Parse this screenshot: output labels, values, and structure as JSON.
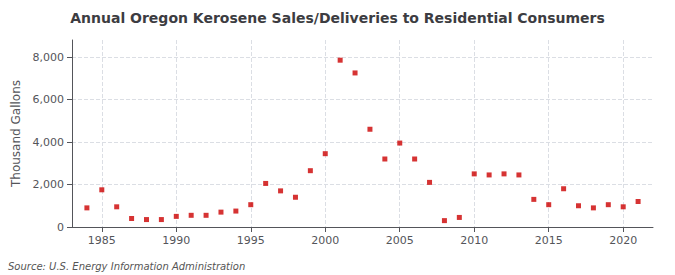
{
  "chart_data": {
    "type": "scatter",
    "title": "Annual Oregon Kerosene Sales/Deliveries to Residential Consumers",
    "ylabel": "Thousand Gallons",
    "annotations": [
      "Source: U.S. Energy Information Administration"
    ],
    "x": [
      1984,
      1985,
      1986,
      1987,
      1988,
      1989,
      1990,
      1991,
      1992,
      1993,
      1994,
      1995,
      1996,
      1997,
      1998,
      1999,
      2000,
      2001,
      2002,
      2003,
      2004,
      2005,
      2006,
      2007,
      2008,
      2009,
      2010,
      2011,
      2012,
      2013,
      2014,
      2015,
      2016,
      2017,
      2018,
      2019,
      2020,
      2021
    ],
    "values": [
      900,
      1750,
      950,
      400,
      350,
      350,
      500,
      550,
      550,
      700,
      750,
      1050,
      2050,
      1700,
      1400,
      2650,
      3450,
      7850,
      7250,
      4600,
      3200,
      3950,
      3200,
      2100,
      300,
      450,
      2500,
      2450,
      2500,
      2450,
      1300,
      1050,
      1800,
      1000,
      900,
      1050,
      950,
      1200
    ],
    "color": "#cc0000",
    "marker": "square",
    "xlim": [
      1983,
      2022
    ],
    "xticks": [
      1985,
      1990,
      1995,
      2000,
      2005,
      2010,
      2015,
      2020
    ],
    "ylim": [
      0,
      8800
    ],
    "yticks": [
      0,
      {
        "value": 2000,
        "label": "2,000"
      },
      {
        "value": 4000,
        "label": "4,000"
      },
      {
        "value": 6000,
        "label": "6,000"
      },
      {
        "value": 8000,
        "label": "8,000"
      }
    ],
    "grid": true
  }
}
